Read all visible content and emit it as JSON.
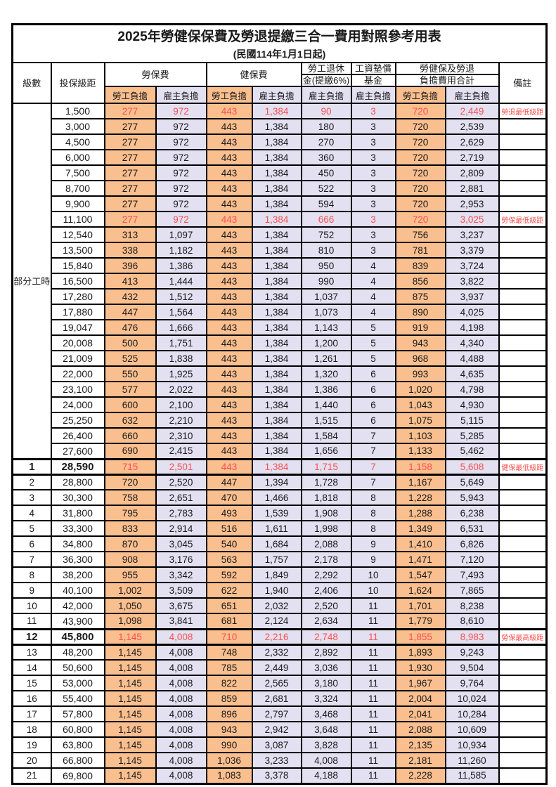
{
  "title": "2025年勞健保保費及勞退提繳三合一費用對照參考用表",
  "subtitle": "(民國114年1月1日起)",
  "header": {
    "level": "級數",
    "bracket": "投保級距",
    "labor_insurance": "勞保費",
    "health_insurance": "健保費",
    "pension_line1": "勞工退休",
    "pension_line2": "金(提繳6%)",
    "wage_fund_line1": "工資墊償",
    "wage_fund_line2": "基金",
    "total_line1": "勞健保及勞退",
    "total_line2": "負擔費用合計",
    "remark": "備註",
    "employee_share": "勞工負擔",
    "employer_share": "雇主負擔"
  },
  "part_time": {
    "label": "部分工時",
    "span": 23
  },
  "colors": {
    "employee_bg": "#FABF8F",
    "employer_bg": "#E2E0F1",
    "highlight_text": "#FA5050",
    "border": "#000000"
  },
  "rows": [
    {
      "level": "",
      "bracket": "1,500",
      "values": [
        "277",
        "972",
        "443",
        "1,384",
        "90",
        "3",
        "720",
        "2,449"
      ],
      "remark": "勞退最低級距",
      "highlight": true,
      "strong": false
    },
    {
      "level": "",
      "bracket": "3,000",
      "values": [
        "277",
        "972",
        "443",
        "1,384",
        "180",
        "3",
        "720",
        "2,539"
      ],
      "remark": "",
      "highlight": false,
      "strong": false
    },
    {
      "level": "",
      "bracket": "4,500",
      "values": [
        "277",
        "972",
        "443",
        "1,384",
        "270",
        "3",
        "720",
        "2,629"
      ],
      "remark": "",
      "highlight": false,
      "strong": false
    },
    {
      "level": "",
      "bracket": "6,000",
      "values": [
        "277",
        "972",
        "443",
        "1,384",
        "360",
        "3",
        "720",
        "2,719"
      ],
      "remark": "",
      "highlight": false,
      "strong": false
    },
    {
      "level": "",
      "bracket": "7,500",
      "values": [
        "277",
        "972",
        "443",
        "1,384",
        "450",
        "3",
        "720",
        "2,809"
      ],
      "remark": "",
      "highlight": false,
      "strong": false
    },
    {
      "level": "",
      "bracket": "8,700",
      "values": [
        "277",
        "972",
        "443",
        "1,384",
        "522",
        "3",
        "720",
        "2,881"
      ],
      "remark": "",
      "highlight": false,
      "strong": false
    },
    {
      "level": "",
      "bracket": "9,900",
      "values": [
        "277",
        "972",
        "443",
        "1,384",
        "594",
        "3",
        "720",
        "2,953"
      ],
      "remark": "",
      "highlight": false,
      "strong": false
    },
    {
      "level": "",
      "bracket": "11,100",
      "values": [
        "277",
        "972",
        "443",
        "1,384",
        "666",
        "3",
        "720",
        "3,025"
      ],
      "remark": "勞保最低級距",
      "highlight": true,
      "strong": false
    },
    {
      "level": "",
      "bracket": "12,540",
      "values": [
        "313",
        "1,097",
        "443",
        "1,384",
        "752",
        "3",
        "756",
        "3,237"
      ],
      "remark": "",
      "highlight": false,
      "strong": false
    },
    {
      "level": "",
      "bracket": "13,500",
      "values": [
        "338",
        "1,182",
        "443",
        "1,384",
        "810",
        "3",
        "781",
        "3,379"
      ],
      "remark": "",
      "highlight": false,
      "strong": false
    },
    {
      "level": "",
      "bracket": "15,840",
      "values": [
        "396",
        "1,386",
        "443",
        "1,384",
        "950",
        "4",
        "839",
        "3,724"
      ],
      "remark": "",
      "highlight": false,
      "strong": false
    },
    {
      "level": "",
      "bracket": "16,500",
      "values": [
        "413",
        "1,444",
        "443",
        "1,384",
        "990",
        "4",
        "856",
        "3,822"
      ],
      "remark": "",
      "highlight": false,
      "strong": false
    },
    {
      "level": "",
      "bracket": "17,280",
      "values": [
        "432",
        "1,512",
        "443",
        "1,384",
        "1,037",
        "4",
        "875",
        "3,937"
      ],
      "remark": "",
      "highlight": false,
      "strong": false
    },
    {
      "level": "",
      "bracket": "17,880",
      "values": [
        "447",
        "1,564",
        "443",
        "1,384",
        "1,073",
        "4",
        "890",
        "4,025"
      ],
      "remark": "",
      "highlight": false,
      "strong": false
    },
    {
      "level": "",
      "bracket": "19,047",
      "values": [
        "476",
        "1,666",
        "443",
        "1,384",
        "1,143",
        "5",
        "919",
        "4,198"
      ],
      "remark": "",
      "highlight": false,
      "strong": false
    },
    {
      "level": "",
      "bracket": "20,008",
      "values": [
        "500",
        "1,751",
        "443",
        "1,384",
        "1,200",
        "5",
        "943",
        "4,340"
      ],
      "remark": "",
      "highlight": false,
      "strong": false
    },
    {
      "level": "",
      "bracket": "21,009",
      "values": [
        "525",
        "1,838",
        "443",
        "1,384",
        "1,261",
        "5",
        "968",
        "4,488"
      ],
      "remark": "",
      "highlight": false,
      "strong": false
    },
    {
      "level": "",
      "bracket": "22,000",
      "values": [
        "550",
        "1,925",
        "443",
        "1,384",
        "1,320",
        "6",
        "993",
        "4,635"
      ],
      "remark": "",
      "highlight": false,
      "strong": false
    },
    {
      "level": "",
      "bracket": "23,100",
      "values": [
        "577",
        "2,022",
        "443",
        "1,384",
        "1,386",
        "6",
        "1,020",
        "4,798"
      ],
      "remark": "",
      "highlight": false,
      "strong": false
    },
    {
      "level": "",
      "bracket": "24,000",
      "values": [
        "600",
        "2,100",
        "443",
        "1,384",
        "1,440",
        "6",
        "1,043",
        "4,930"
      ],
      "remark": "",
      "highlight": false,
      "strong": false
    },
    {
      "level": "",
      "bracket": "25,250",
      "values": [
        "632",
        "2,210",
        "443",
        "1,384",
        "1,515",
        "6",
        "1,075",
        "5,115"
      ],
      "remark": "",
      "highlight": false,
      "strong": false
    },
    {
      "level": "",
      "bracket": "26,400",
      "values": [
        "660",
        "2,310",
        "443",
        "1,384",
        "1,584",
        "7",
        "1,103",
        "5,285"
      ],
      "remark": "",
      "highlight": false,
      "strong": false
    },
    {
      "level": "",
      "bracket": "27,600",
      "values": [
        "690",
        "2,415",
        "443",
        "1,384",
        "1,656",
        "7",
        "1,133",
        "5,462"
      ],
      "remark": "",
      "highlight": false,
      "strong": false
    },
    {
      "level": "1",
      "bracket": "28,590",
      "values": [
        "715",
        "2,501",
        "443",
        "1,384",
        "1,715",
        "7",
        "1,158",
        "5,608"
      ],
      "remark": "健保最低級距",
      "highlight": true,
      "strong": true
    },
    {
      "level": "2",
      "bracket": "28,800",
      "values": [
        "720",
        "2,520",
        "447",
        "1,394",
        "1,728",
        "7",
        "1,167",
        "5,649"
      ],
      "remark": "",
      "highlight": false,
      "strong": false
    },
    {
      "level": "3",
      "bracket": "30,300",
      "values": [
        "758",
        "2,651",
        "470",
        "1,466",
        "1,818",
        "8",
        "1,228",
        "5,943"
      ],
      "remark": "",
      "highlight": false,
      "strong": false
    },
    {
      "level": "4",
      "bracket": "31,800",
      "values": [
        "795",
        "2,783",
        "493",
        "1,539",
        "1,908",
        "8",
        "1,288",
        "6,238"
      ],
      "remark": "",
      "highlight": false,
      "strong": false
    },
    {
      "level": "5",
      "bracket": "33,300",
      "values": [
        "833",
        "2,914",
        "516",
        "1,611",
        "1,998",
        "8",
        "1,349",
        "6,531"
      ],
      "remark": "",
      "highlight": false,
      "strong": false
    },
    {
      "level": "6",
      "bracket": "34,800",
      "values": [
        "870",
        "3,045",
        "540",
        "1,684",
        "2,088",
        "9",
        "1,410",
        "6,826"
      ],
      "remark": "",
      "highlight": false,
      "strong": false
    },
    {
      "level": "7",
      "bracket": "36,300",
      "values": [
        "908",
        "3,176",
        "563",
        "1,757",
        "2,178",
        "9",
        "1,471",
        "7,120"
      ],
      "remark": "",
      "highlight": false,
      "strong": false
    },
    {
      "level": "8",
      "bracket": "38,200",
      "values": [
        "955",
        "3,342",
        "592",
        "1,849",
        "2,292",
        "10",
        "1,547",
        "7,493"
      ],
      "remark": "",
      "highlight": false,
      "strong": false
    },
    {
      "level": "9",
      "bracket": "40,100",
      "values": [
        "1,002",
        "3,509",
        "622",
        "1,940",
        "2,406",
        "10",
        "1,624",
        "7,865"
      ],
      "remark": "",
      "highlight": false,
      "strong": false
    },
    {
      "level": "10",
      "bracket": "42,000",
      "values": [
        "1,050",
        "3,675",
        "651",
        "2,032",
        "2,520",
        "11",
        "1,701",
        "8,238"
      ],
      "remark": "",
      "highlight": false,
      "strong": false
    },
    {
      "level": "11",
      "bracket": "43,900",
      "values": [
        "1,098",
        "3,841",
        "681",
        "2,124",
        "2,634",
        "11",
        "1,779",
        "8,610"
      ],
      "remark": "",
      "highlight": false,
      "strong": false
    },
    {
      "level": "12",
      "bracket": "45,800",
      "values": [
        "1,145",
        "4,008",
        "710",
        "2,216",
        "2,748",
        "11",
        "1,855",
        "8,983"
      ],
      "remark": "勞保最高級距",
      "highlight": true,
      "strong": true
    },
    {
      "level": "13",
      "bracket": "48,200",
      "values": [
        "1,145",
        "4,008",
        "748",
        "2,332",
        "2,892",
        "11",
        "1,893",
        "9,243"
      ],
      "remark": "",
      "highlight": false,
      "strong": false
    },
    {
      "level": "14",
      "bracket": "50,600",
      "values": [
        "1,145",
        "4,008",
        "785",
        "2,449",
        "3,036",
        "11",
        "1,930",
        "9,504"
      ],
      "remark": "",
      "highlight": false,
      "strong": false
    },
    {
      "level": "15",
      "bracket": "53,000",
      "values": [
        "1,145",
        "4,008",
        "822",
        "2,565",
        "3,180",
        "11",
        "1,967",
        "9,764"
      ],
      "remark": "",
      "highlight": false,
      "strong": false
    },
    {
      "level": "16",
      "bracket": "55,400",
      "values": [
        "1,145",
        "4,008",
        "859",
        "2,681",
        "3,324",
        "11",
        "2,004",
        "10,024"
      ],
      "remark": "",
      "highlight": false,
      "strong": false
    },
    {
      "level": "17",
      "bracket": "57,800",
      "values": [
        "1,145",
        "4,008",
        "896",
        "2,797",
        "3,468",
        "11",
        "2,041",
        "10,284"
      ],
      "remark": "",
      "highlight": false,
      "strong": false
    },
    {
      "level": "18",
      "bracket": "60,800",
      "values": [
        "1,145",
        "4,008",
        "943",
        "2,942",
        "3,648",
        "11",
        "2,088",
        "10,609"
      ],
      "remark": "",
      "highlight": false,
      "strong": false
    },
    {
      "level": "19",
      "bracket": "63,800",
      "values": [
        "1,145",
        "4,008",
        "990",
        "3,087",
        "3,828",
        "11",
        "2,135",
        "10,934"
      ],
      "remark": "",
      "highlight": false,
      "strong": false
    },
    {
      "level": "20",
      "bracket": "66,800",
      "values": [
        "1,145",
        "4,008",
        "1,036",
        "3,233",
        "4,008",
        "11",
        "2,181",
        "11,260"
      ],
      "remark": "",
      "highlight": false,
      "strong": false
    },
    {
      "level": "21",
      "bracket": "69,800",
      "values": [
        "1,145",
        "4,008",
        "1,083",
        "3,378",
        "4,188",
        "11",
        "2,228",
        "11,585"
      ],
      "remark": "",
      "highlight": false,
      "strong": false
    }
  ]
}
